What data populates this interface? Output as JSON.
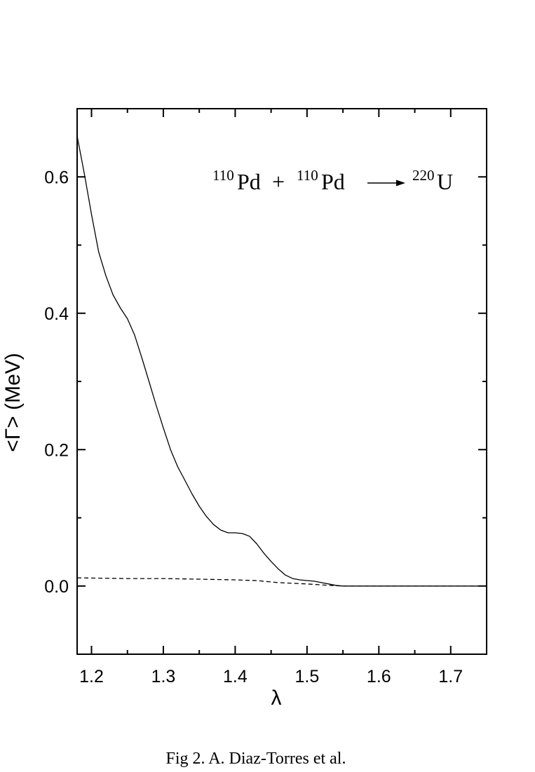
{
  "chart_data": {
    "type": "line",
    "xlabel": "λ",
    "ylabel": "<Γ> (MeV)",
    "xlim": [
      1.18,
      1.75
    ],
    "ylim": [
      -0.1,
      0.7
    ],
    "xticks": [
      1.2,
      1.3,
      1.4,
      1.5,
      1.6,
      1.7
    ],
    "xtick_labels": [
      "1.2",
      "1.3",
      "1.4",
      "1.5",
      "1.6",
      "1.7"
    ],
    "yticks": [
      0.0,
      0.2,
      0.4,
      0.6
    ],
    "ytick_labels": [
      "0.0",
      "0.2",
      "0.4",
      "0.6"
    ],
    "grid": false,
    "annotation": {
      "sup1": "110",
      "el1": "Pd",
      "plus": "+",
      "sup2": "110",
      "el2": "Pd",
      "sup3": "220",
      "el3": "U"
    },
    "series": [
      {
        "style": "solid",
        "x": [
          1.18,
          1.19,
          1.2,
          1.21,
          1.22,
          1.23,
          1.24,
          1.25,
          1.26,
          1.27,
          1.28,
          1.29,
          1.3,
          1.31,
          1.32,
          1.33,
          1.34,
          1.35,
          1.36,
          1.37,
          1.38,
          1.39,
          1.4,
          1.41,
          1.42,
          1.43,
          1.44,
          1.45,
          1.46,
          1.47,
          1.48,
          1.49,
          1.5,
          1.51,
          1.52,
          1.53,
          1.54,
          1.55,
          1.6,
          1.65,
          1.7,
          1.75
        ],
        "y": [
          0.66,
          0.605,
          0.545,
          0.49,
          0.455,
          0.427,
          0.408,
          0.392,
          0.368,
          0.335,
          0.3,
          0.265,
          0.232,
          0.2,
          0.175,
          0.155,
          0.135,
          0.117,
          0.102,
          0.09,
          0.082,
          0.078,
          0.078,
          0.077,
          0.073,
          0.062,
          0.048,
          0.036,
          0.025,
          0.016,
          0.011,
          0.009,
          0.008,
          0.007,
          0.005,
          0.003,
          0.001,
          0.0,
          0.0,
          0.0,
          0.0,
          0.0
        ]
      },
      {
        "style": "dashed",
        "x": [
          1.18,
          1.25,
          1.3,
          1.35,
          1.4,
          1.43,
          1.46,
          1.5,
          1.53,
          1.55,
          1.6,
          1.7,
          1.75
        ],
        "y": [
          0.012,
          0.011,
          0.011,
          0.01,
          0.009,
          0.008,
          0.005,
          0.003,
          0.001,
          0.0,
          0.0,
          0.0,
          0.0
        ]
      }
    ]
  },
  "caption": "Fig 2. A. Diaz-Torres et al."
}
